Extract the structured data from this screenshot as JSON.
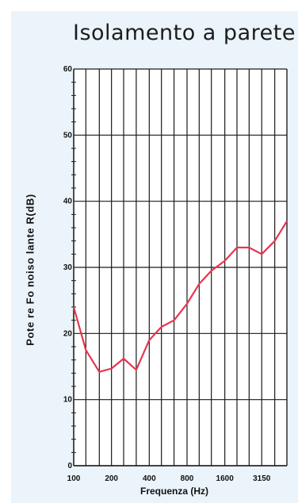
{
  "chart_data": {
    "type": "line",
    "title": "Isolamento a parete",
    "xlabel": "Frequenza (Hz)",
    "ylabel": "Pote re Fo noiso lante R(dB)",
    "x_scale": "log",
    "x": [
      100,
      125,
      160,
      200,
      250,
      315,
      400,
      500,
      630,
      800,
      1000,
      1250,
      1600,
      2000,
      2500,
      3150,
      4000,
      5000
    ],
    "series": [
      {
        "values": [
          24,
          17.5,
          14.2,
          14.7,
          16.2,
          14.5,
          19,
          21,
          22,
          24.5,
          27.5,
          29.5,
          31,
          33,
          33,
          32,
          34,
          37
        ]
      }
    ],
    "xticks": [
      "100",
      "200",
      "400",
      "800",
      "1600",
      "3150"
    ],
    "xtick_values": [
      100,
      200,
      400,
      800,
      1600,
      3150
    ],
    "yticks": [
      "0",
      "10",
      "20",
      "30",
      "40",
      "50",
      "60"
    ],
    "ytick_values": [
      0,
      10,
      20,
      30,
      40,
      50,
      60
    ],
    "ylim": [
      0,
      60
    ],
    "xlim": [
      100,
      5000
    ],
    "grid": true,
    "line_color": "#e8354f"
  }
}
